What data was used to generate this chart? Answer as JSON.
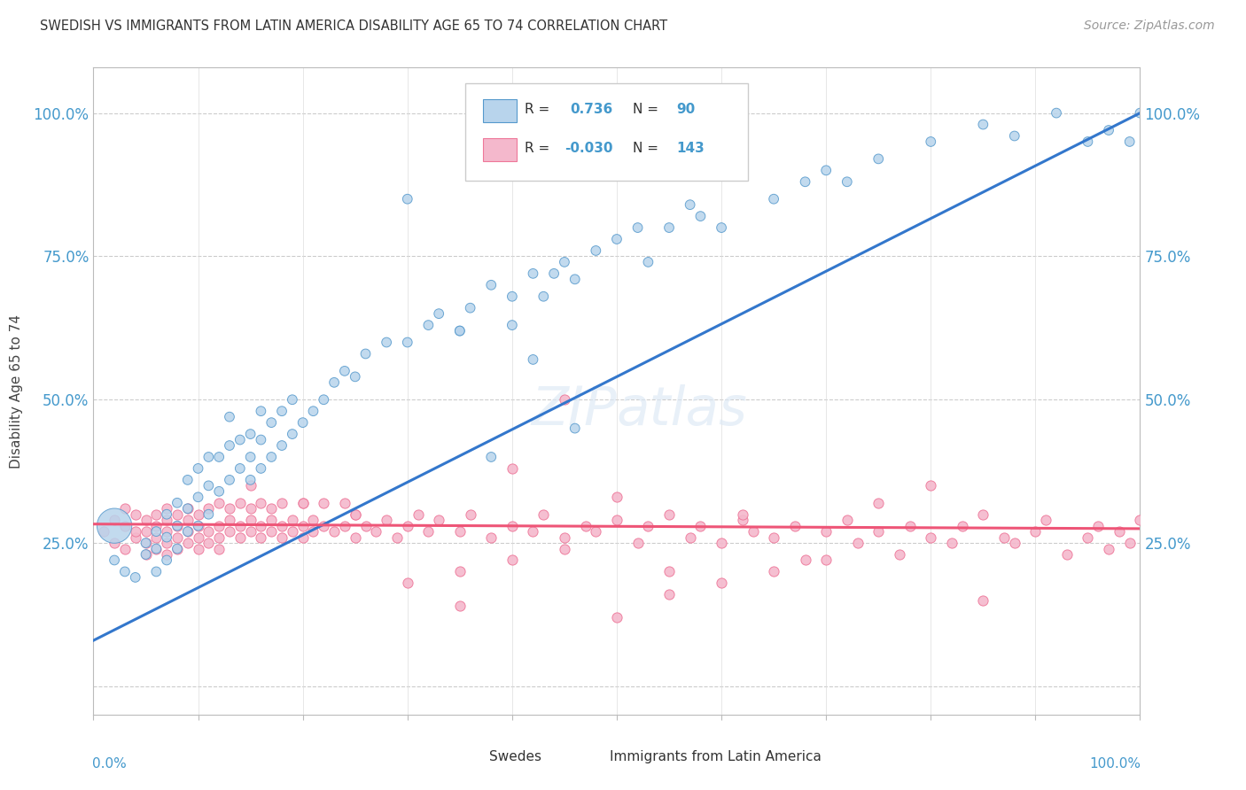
{
  "title": "SWEDISH VS IMMIGRANTS FROM LATIN AMERICA DISABILITY AGE 65 TO 74 CORRELATION CHART",
  "source": "Source: ZipAtlas.com",
  "ylabel": "Disability Age 65 to 74",
  "xlim": [
    0.0,
    1.0
  ],
  "ylim": [
    -0.05,
    1.08
  ],
  "yticks": [
    0.0,
    0.25,
    0.5,
    0.75,
    1.0
  ],
  "ytick_labels": [
    "",
    "25.0%",
    "50.0%",
    "75.0%",
    "100.0%"
  ],
  "r_swedish": 0.736,
  "n_swedish": 90,
  "r_latin": -0.03,
  "n_latin": 143,
  "color_swedish_fill": "#b8d4ec",
  "color_swedish_edge": "#5599cc",
  "color_latin_fill": "#f4b8cc",
  "color_latin_edge": "#ee7799",
  "color_line_swedish": "#3377cc",
  "color_line_latin": "#ee5577",
  "background_color": "#ffffff",
  "sw_line_x0": 0.0,
  "sw_line_y0": 0.08,
  "sw_line_x1": 1.0,
  "sw_line_y1": 1.0,
  "la_line_x0": 0.0,
  "la_line_y0": 0.283,
  "la_line_x1": 1.0,
  "la_line_y1": 0.275,
  "swedish_x": [
    0.02,
    0.03,
    0.04,
    0.05,
    0.05,
    0.06,
    0.06,
    0.06,
    0.07,
    0.07,
    0.07,
    0.08,
    0.08,
    0.08,
    0.09,
    0.09,
    0.09,
    0.1,
    0.1,
    0.1,
    0.11,
    0.11,
    0.11,
    0.12,
    0.12,
    0.13,
    0.13,
    0.13,
    0.14,
    0.14,
    0.15,
    0.15,
    0.15,
    0.16,
    0.16,
    0.16,
    0.17,
    0.17,
    0.18,
    0.18,
    0.19,
    0.19,
    0.2,
    0.21,
    0.22,
    0.23,
    0.24,
    0.25,
    0.26,
    0.28,
    0.3,
    0.32,
    0.33,
    0.35,
    0.36,
    0.38,
    0.4,
    0.4,
    0.42,
    0.43,
    0.44,
    0.45,
    0.46,
    0.48,
    0.5,
    0.52,
    0.53,
    0.55,
    0.57,
    0.58,
    0.6,
    0.65,
    0.68,
    0.7,
    0.72,
    0.75,
    0.8,
    0.85,
    0.88,
    0.92,
    0.95,
    0.97,
    0.99,
    1.0,
    0.3,
    0.35,
    0.38,
    0.42,
    0.46,
    0.02
  ],
  "swedish_y": [
    0.22,
    0.2,
    0.19,
    0.23,
    0.25,
    0.2,
    0.24,
    0.27,
    0.22,
    0.26,
    0.3,
    0.24,
    0.28,
    0.32,
    0.27,
    0.31,
    0.36,
    0.28,
    0.33,
    0.38,
    0.3,
    0.35,
    0.4,
    0.34,
    0.4,
    0.36,
    0.42,
    0.47,
    0.38,
    0.43,
    0.36,
    0.4,
    0.44,
    0.38,
    0.43,
    0.48,
    0.4,
    0.46,
    0.42,
    0.48,
    0.44,
    0.5,
    0.46,
    0.48,
    0.5,
    0.53,
    0.55,
    0.54,
    0.58,
    0.6,
    0.6,
    0.63,
    0.65,
    0.62,
    0.66,
    0.7,
    0.63,
    0.68,
    0.72,
    0.68,
    0.72,
    0.74,
    0.71,
    0.76,
    0.78,
    0.8,
    0.74,
    0.8,
    0.84,
    0.82,
    0.8,
    0.85,
    0.88,
    0.9,
    0.88,
    0.92,
    0.95,
    0.98,
    0.96,
    1.0,
    0.95,
    0.97,
    0.95,
    1.0,
    0.85,
    0.62,
    0.4,
    0.57,
    0.45,
    0.28
  ],
  "swedish_sizes": [
    60,
    60,
    60,
    60,
    60,
    60,
    60,
    60,
    60,
    60,
    60,
    60,
    60,
    60,
    60,
    60,
    60,
    60,
    60,
    60,
    60,
    60,
    60,
    60,
    60,
    60,
    60,
    60,
    60,
    60,
    60,
    60,
    60,
    60,
    60,
    60,
    60,
    60,
    60,
    60,
    60,
    60,
    60,
    60,
    60,
    60,
    60,
    60,
    60,
    60,
    60,
    60,
    60,
    60,
    60,
    60,
    60,
    60,
    60,
    60,
    60,
    60,
    60,
    60,
    60,
    60,
    60,
    60,
    60,
    60,
    60,
    60,
    60,
    60,
    60,
    60,
    60,
    60,
    60,
    60,
    60,
    60,
    60,
    60,
    60,
    60,
    60,
    60,
    60,
    800
  ],
  "latin_x": [
    0.01,
    0.02,
    0.02,
    0.03,
    0.03,
    0.03,
    0.04,
    0.04,
    0.04,
    0.05,
    0.05,
    0.05,
    0.05,
    0.06,
    0.06,
    0.06,
    0.06,
    0.07,
    0.07,
    0.07,
    0.07,
    0.07,
    0.08,
    0.08,
    0.08,
    0.08,
    0.09,
    0.09,
    0.09,
    0.09,
    0.1,
    0.1,
    0.1,
    0.1,
    0.11,
    0.11,
    0.11,
    0.12,
    0.12,
    0.12,
    0.12,
    0.13,
    0.13,
    0.13,
    0.14,
    0.14,
    0.14,
    0.15,
    0.15,
    0.15,
    0.16,
    0.16,
    0.16,
    0.17,
    0.17,
    0.17,
    0.18,
    0.18,
    0.18,
    0.19,
    0.19,
    0.2,
    0.2,
    0.2,
    0.21,
    0.21,
    0.22,
    0.22,
    0.23,
    0.24,
    0.24,
    0.25,
    0.25,
    0.26,
    0.27,
    0.28,
    0.29,
    0.3,
    0.31,
    0.32,
    0.33,
    0.35,
    0.36,
    0.38,
    0.4,
    0.42,
    0.43,
    0.45,
    0.47,
    0.48,
    0.5,
    0.52,
    0.53,
    0.55,
    0.57,
    0.58,
    0.6,
    0.62,
    0.63,
    0.65,
    0.67,
    0.68,
    0.7,
    0.72,
    0.73,
    0.75,
    0.77,
    0.78,
    0.8,
    0.82,
    0.83,
    0.85,
    0.87,
    0.88,
    0.9,
    0.91,
    0.93,
    0.95,
    0.96,
    0.97,
    0.98,
    0.99,
    1.0,
    0.3,
    0.35,
    0.4,
    0.45,
    0.5,
    0.55,
    0.6,
    0.65,
    0.7,
    0.75,
    0.8,
    0.85,
    0.15,
    0.2,
    0.25,
    0.35,
    0.4,
    0.45,
    0.5,
    0.55,
    0.62
  ],
  "latin_y": [
    0.27,
    0.25,
    0.29,
    0.24,
    0.28,
    0.31,
    0.26,
    0.3,
    0.27,
    0.25,
    0.29,
    0.27,
    0.23,
    0.26,
    0.3,
    0.28,
    0.24,
    0.27,
    0.31,
    0.25,
    0.29,
    0.23,
    0.26,
    0.3,
    0.28,
    0.24,
    0.27,
    0.31,
    0.25,
    0.29,
    0.26,
    0.3,
    0.28,
    0.24,
    0.27,
    0.31,
    0.25,
    0.28,
    0.32,
    0.26,
    0.24,
    0.27,
    0.31,
    0.29,
    0.28,
    0.32,
    0.26,
    0.27,
    0.31,
    0.29,
    0.28,
    0.32,
    0.26,
    0.29,
    0.27,
    0.31,
    0.28,
    0.32,
    0.26,
    0.29,
    0.27,
    0.28,
    0.32,
    0.26,
    0.29,
    0.27,
    0.28,
    0.32,
    0.27,
    0.28,
    0.32,
    0.26,
    0.3,
    0.28,
    0.27,
    0.29,
    0.26,
    0.28,
    0.3,
    0.27,
    0.29,
    0.27,
    0.3,
    0.26,
    0.28,
    0.27,
    0.3,
    0.26,
    0.28,
    0.27,
    0.29,
    0.25,
    0.28,
    0.3,
    0.26,
    0.28,
    0.25,
    0.29,
    0.27,
    0.26,
    0.28,
    0.22,
    0.27,
    0.29,
    0.25,
    0.27,
    0.23,
    0.28,
    0.26,
    0.25,
    0.28,
    0.3,
    0.26,
    0.25,
    0.27,
    0.29,
    0.23,
    0.26,
    0.28,
    0.24,
    0.27,
    0.25,
    0.29,
    0.18,
    0.2,
    0.22,
    0.24,
    0.33,
    0.16,
    0.18,
    0.2,
    0.22,
    0.32,
    0.35,
    0.15,
    0.35,
    0.32,
    0.3,
    0.14,
    0.38,
    0.5,
    0.12,
    0.2,
    0.3
  ]
}
